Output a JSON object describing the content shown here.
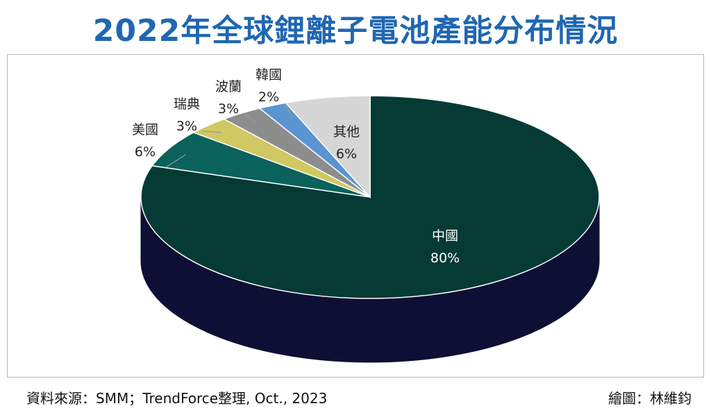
{
  "title": "2022年全球鋰離子電池產能分布情況",
  "chart_data": {
    "type": "pie",
    "title": "2022年全球鋰離子電池產能分布情況",
    "slices": [
      {
        "label": "中國",
        "value": 80,
        "display": "80%",
        "color": "#053a35",
        "side_color": "#0e0f35"
      },
      {
        "label": "美國",
        "value": 6,
        "display": "6%",
        "color": "#0b615c",
        "side_color": "#0a4642"
      },
      {
        "label": "瑞典",
        "value": 3,
        "display": "3%",
        "color": "#cfc863",
        "side_color": "#9e9a4a"
      },
      {
        "label": "波蘭",
        "value": 3,
        "display": "3%",
        "color": "#8d8d8d",
        "side_color": "#666666"
      },
      {
        "label": "韓國",
        "value": 2,
        "display": "2%",
        "color": "#5a94d1",
        "side_color": "#3f6f9f"
      },
      {
        "label": "其他",
        "value": 6,
        "display": "6%",
        "color": "#d6d6d6",
        "side_color": "#a8a8a8"
      }
    ],
    "start_angle_deg": 0,
    "direction": "clockwise",
    "style": "3d"
  },
  "footer": {
    "source": "資料來源：SMM；TrendForce整理, Oct., 2023",
    "credit": "繪圖：林維鈞"
  }
}
